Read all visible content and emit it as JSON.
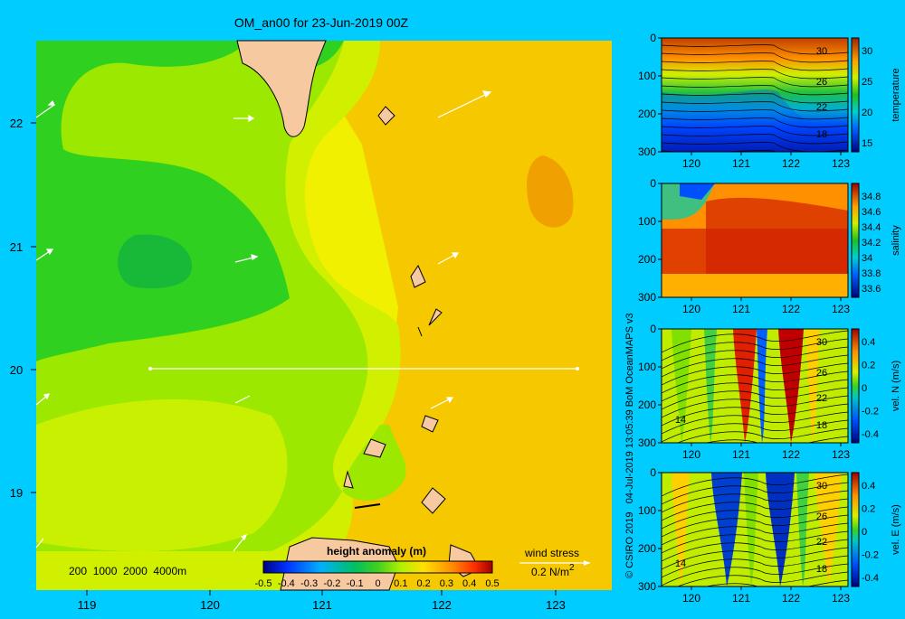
{
  "title": "OM_an00 for 23-Jun-2019 00Z",
  "colors": {
    "background": "#00ccff",
    "land": "#f7c9a0",
    "vector": "#ffffff"
  },
  "main_map": {
    "lon_ticks": [
      "119",
      "120",
      "121",
      "122",
      "123"
    ],
    "lat_ticks": [
      "22",
      "21",
      "20",
      "19"
    ],
    "depth_legend": "200  1000  2000  4000m",
    "colorbar": {
      "title": "height anomaly (m)",
      "ticks": [
        "-0.5",
        "-0.4",
        "-0.3",
        "-0.2",
        "-0.1",
        "0",
        "0.1",
        "0.2",
        "0.3",
        "0.4",
        "0.5"
      ],
      "colors": [
        "#000080",
        "#0020ff",
        "#0090ff",
        "#00c8e0",
        "#00c070",
        "#30d020",
        "#90e800",
        "#e0f000",
        "#ffd000",
        "#ff9000",
        "#ff4000",
        "#c00000"
      ]
    },
    "wind_stress_label": "wind stress",
    "wind_stress_unit": "0.2 N/m",
    "wind_stress_unit_exp": "2"
  },
  "side_panels": [
    {
      "id": "temperature",
      "ylabel": "temperature",
      "depth_ticks": [
        "0",
        "100",
        "200",
        "300"
      ],
      "lon_ticks": [
        "120",
        "121",
        "122",
        "123"
      ],
      "cb_ticks": [
        "30",
        "25",
        "20",
        "15"
      ],
      "contour_labels": [
        "30",
        "26",
        "22",
        "18"
      ]
    },
    {
      "id": "salinity",
      "ylabel": "salinity",
      "depth_ticks": [
        "0",
        "100",
        "200",
        "300"
      ],
      "lon_ticks": [
        "120",
        "121",
        "122",
        "123"
      ],
      "cb_ticks": [
        "34.8",
        "34.6",
        "34.4",
        "34.2",
        "34",
        "33.8",
        "33.6"
      ],
      "contour_labels": []
    },
    {
      "id": "vel-n",
      "ylabel": "vel. N (m/s)",
      "depth_ticks": [
        "0",
        "100",
        "200",
        "300"
      ],
      "lon_ticks": [
        "120",
        "121",
        "122",
        "123"
      ],
      "cb_ticks": [
        "0.4",
        "0.2",
        "0",
        "-0.2",
        "-0.4"
      ],
      "contour_labels": [
        "30",
        "26",
        "22",
        "18",
        "14"
      ]
    },
    {
      "id": "vel-e",
      "ylabel": "vel. E (m/s)",
      "depth_ticks": [
        "0",
        "100",
        "200",
        "300"
      ],
      "lon_ticks": [
        "120",
        "121",
        "122",
        "123"
      ],
      "cb_ticks": [
        "0.4",
        "0.2",
        "0",
        "-0.2",
        "-0.4"
      ],
      "contour_labels": [
        "30",
        "26",
        "22",
        "18",
        "14"
      ]
    }
  ],
  "credit": "© CSIRO 2019   04-Jul-2019 13:05:39 BoM OceanMAPS v3"
}
